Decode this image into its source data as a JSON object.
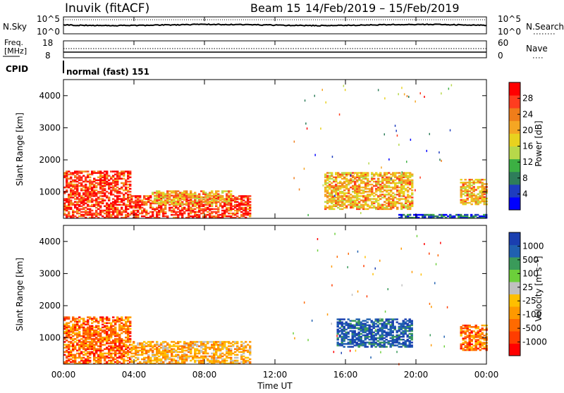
{
  "header": {
    "station": "Inuvik (fitACF)",
    "beam_label": "Beam 15",
    "date_range": "14/Feb/2019 – 15/Feb/2019"
  },
  "noise_panel": {
    "left_label": "N.Sky",
    "right_label": "N.Search",
    "left_ticks": [
      "10^5",
      "10^0"
    ],
    "right_ticks": [
      "10^5",
      "10^0"
    ]
  },
  "freq_panel": {
    "left_label_1": "Freq.",
    "left_label_2": "[MHz]",
    "right_label": "Nave",
    "left_ticks": [
      "18",
      "8"
    ],
    "right_ticks": [
      "60",
      "0"
    ]
  },
  "cpid": {
    "label": "CPID",
    "value": "normal (fast) 151"
  },
  "time_axis": {
    "label": "Time UT",
    "ticks": [
      "00:00",
      "04:00",
      "08:00",
      "12:00",
      "16:00",
      "20:00",
      "00:00"
    ]
  },
  "chart_data": [
    {
      "type": "heatmap",
      "name": "power",
      "ylabel": "Slant Range [km]",
      "ylim": [
        180,
        4500
      ],
      "yticks": [
        "1000",
        "2000",
        "3000",
        "4000"
      ],
      "xlim_hours": [
        0,
        24
      ],
      "colorbar": {
        "label": "Power [dB]",
        "range": [
          0,
          30
        ],
        "ticks": [
          "28",
          "24",
          "20",
          "16",
          "12",
          "8",
          "4"
        ],
        "colors": [
          "#0000ff",
          "#1e3cbf",
          "#2e7d5a",
          "#3cb043",
          "#b7d84a",
          "#e8d21f",
          "#f5a623",
          "#f07d1a",
          "#ff3d1f",
          "#ff0000"
        ]
      },
      "echo_regions": [
        {
          "t0": 0.0,
          "t1": 3.8,
          "r0": 180,
          "r1": 1650,
          "level": "high"
        },
        {
          "t0": 3.8,
          "t1": 10.6,
          "r0": 180,
          "r1": 900,
          "level": "high"
        },
        {
          "t0": 5.0,
          "t1": 9.5,
          "r0": 600,
          "r1": 1050,
          "level": "medium"
        },
        {
          "t0": 14.8,
          "t1": 19.8,
          "r0": 450,
          "r1": 1600,
          "level": "medium"
        },
        {
          "t0": 19.0,
          "t1": 24.0,
          "r0": 180,
          "r1": 300,
          "level": "low"
        },
        {
          "t0": 22.5,
          "t1": 24.0,
          "r0": 600,
          "r1": 1400,
          "level": "medium"
        }
      ]
    },
    {
      "type": "heatmap",
      "name": "velocity",
      "ylabel": "Slant Range [km]",
      "ylim": [
        180,
        4500
      ],
      "yticks": [
        "1000",
        "2000",
        "3000",
        "4000"
      ],
      "xlim_hours": [
        0,
        24
      ],
      "colorbar": {
        "label": "Velocity [m s⁻¹]",
        "range": [
          -1200,
          1200
        ],
        "ticks": [
          "1000",
          "500",
          "100",
          "25",
          "-25",
          "-100",
          "-500",
          "-1000"
        ],
        "colors": [
          "#ff0000",
          "#ff3d00",
          "#ff6a00",
          "#ff9900",
          "#ffbf00",
          "#c0c0c0",
          "#6ccf3a",
          "#3a9a5a",
          "#2060b0",
          "#1a3fb0"
        ]
      },
      "echo_regions": [
        {
          "t0": 0.0,
          "t1": 3.8,
          "r0": 180,
          "r1": 1650,
          "level": "negative"
        },
        {
          "t0": 3.8,
          "t1": 10.6,
          "r0": 180,
          "r1": 900,
          "level": "slightly-negative"
        },
        {
          "t0": 15.5,
          "t1": 19.8,
          "r0": 700,
          "r1": 1600,
          "level": "positive"
        },
        {
          "t0": 22.5,
          "t1": 24.0,
          "r0": 600,
          "r1": 1400,
          "level": "negative"
        }
      ]
    }
  ]
}
